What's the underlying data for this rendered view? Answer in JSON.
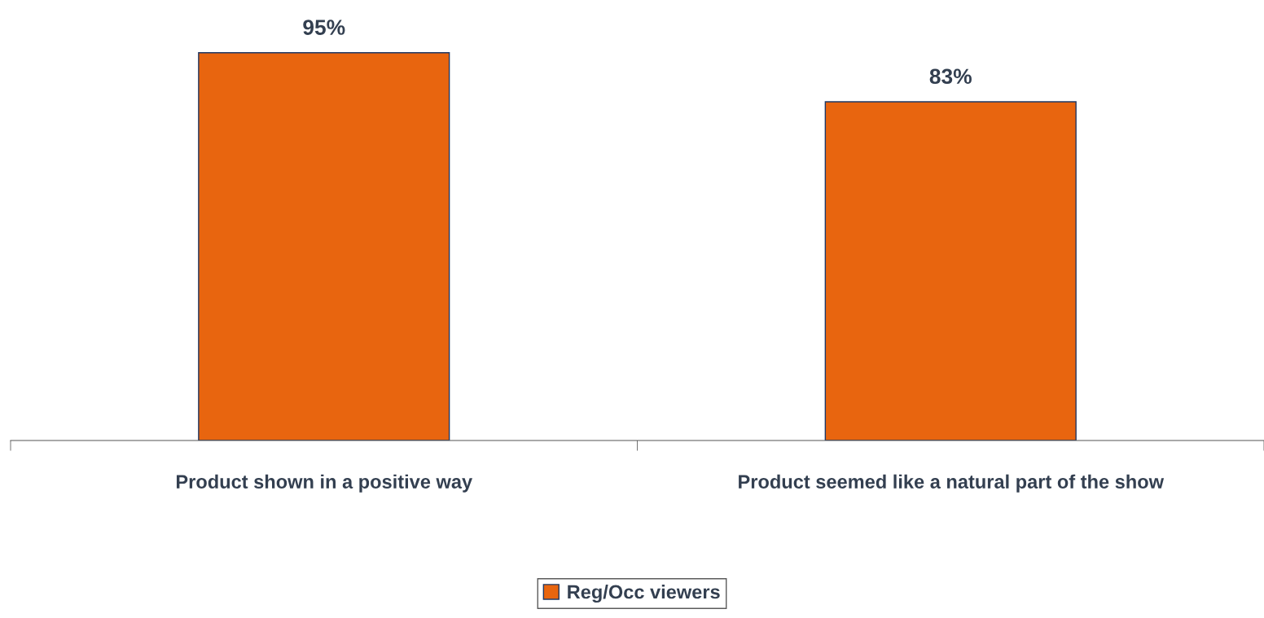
{
  "chart_data": {
    "type": "bar",
    "categories": [
      "Product shown in a positive way",
      "Product seemed like a natural part of the show"
    ],
    "series": [
      {
        "name": "Reg/Occ viewers",
        "color": "#e8650f",
        "values": [
          95,
          83
        ],
        "value_labels": [
          "95%",
          "83%"
        ]
      }
    ],
    "legend": "bottom",
    "grid": false
  }
}
